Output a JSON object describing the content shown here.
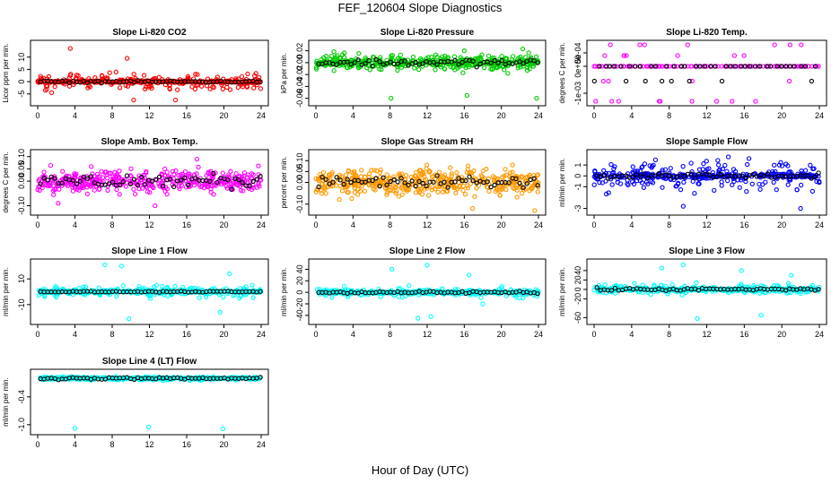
{
  "figure": {
    "title": "FEF_120604  Slope Diagnostics",
    "xlabel": "Hour of Day (UTC)"
  },
  "chart_data": [
    {
      "type": "scatter",
      "title": "Slope Li-820 CO2",
      "ylabel": "Licor ppm per min.",
      "xlim": [
        0,
        24
      ],
      "ylim": [
        -8,
        15
      ],
      "xticks": [
        0,
        4,
        8,
        12,
        16,
        20,
        24
      ],
      "yticks": [
        -5,
        0,
        5,
        10
      ],
      "yticklabels": [
        "-5",
        "0",
        "5",
        "10"
      ],
      "color": "#ff0000",
      "center": 0,
      "spread": 4.5,
      "dense_spread": 0.5,
      "black_spread": 0.5,
      "outliers": [
        [
          3.5,
          13.5
        ],
        [
          10.3,
          -7.5
        ],
        [
          14.8,
          -7.5
        ],
        [
          9.6,
          9.5
        ],
        [
          1.5,
          -4.5
        ]
      ],
      "series": [
        {
          "name": "",
          "values": []
        }
      ]
    },
    {
      "type": "scatter",
      "title": "Slope Li-820 Pressure",
      "ylabel": "kPa per min.",
      "xlim": [
        0,
        24
      ],
      "ylim": [
        -0.065,
        0.03
      ],
      "xticks": [
        0,
        4,
        8,
        12,
        16,
        20,
        24
      ],
      "yticks": [
        -0.06,
        -0.04,
        -0.02,
        0.0,
        0.02
      ],
      "yticklabels": [
        "-0.06",
        "-0.04",
        "-0.02",
        "0.00",
        "0.02"
      ],
      "color": "#00cc00",
      "center": 0.0,
      "spread": 0.02,
      "dense_spread": 0.012,
      "black_spread": 0.008,
      "outliers": [
        [
          8.1,
          -0.06
        ],
        [
          16.3,
          -0.055
        ],
        [
          23.8,
          -0.06
        ],
        [
          16.0,
          0.02
        ],
        [
          22.3,
          0.023
        ]
      ],
      "series": [
        {
          "name": "",
          "values": []
        }
      ]
    },
    {
      "type": "scatter",
      "title": "Slope Li-820 Temp.",
      "ylabel": "degrees C per min.",
      "xlim": [
        0,
        24
      ],
      "ylim": [
        -0.0013,
        0.0008
      ],
      "xticks": [
        0,
        4,
        8,
        12,
        16,
        20,
        24
      ],
      "yticks": [
        -0.001,
        0.0,
        0.0005
      ],
      "yticklabels": [
        "-1e-03",
        "0e+00",
        "5e-04"
      ],
      "color": "#ff00ff",
      "levels": [
        -0.0013,
        -0.00055,
        0.0,
        0.0004,
        0.0008
      ],
      "series": [
        {
          "name": "",
          "values": []
        }
      ]
    },
    {
      "type": "scatter",
      "title": "Slope Amb. Box Temp.",
      "ylabel": "degrees C per min.",
      "xlim": [
        0,
        24
      ],
      "ylim": [
        -0.12,
        0.11
      ],
      "xticks": [
        0,
        4,
        8,
        12,
        16,
        20,
        24
      ],
      "yticks": [
        -0.1,
        0.0,
        0.05,
        0.1
      ],
      "yticklabels": [
        "-0.10",
        "0.00",
        "0.05",
        "0.10"
      ],
      "color": "#ff00ff",
      "center": 0.0,
      "spread": 0.07,
      "dense_spread": 0.05,
      "black_spread": 0.04,
      "outliers": [
        [
          12.6,
          -0.1
        ],
        [
          17.1,
          0.09
        ],
        [
          2.2,
          -0.09
        ]
      ],
      "series": [
        {
          "name": "",
          "values": []
        }
      ]
    },
    {
      "type": "scatter",
      "title": "Slope Gas Stream RH",
      "ylabel": "percent per min.",
      "xlim": [
        0,
        24
      ],
      "ylim": [
        -0.13,
        0.13
      ],
      "xticks": [
        0,
        4,
        8,
        12,
        16,
        20,
        24
      ],
      "yticks": [
        -0.1,
        0.0,
        0.05,
        0.1
      ],
      "yticklabels": [
        "-0.10",
        "0.00",
        "0.05",
        "0.10"
      ],
      "color": "#ff9900",
      "center": 0.0,
      "spread": 0.09,
      "dense_spread": 0.07,
      "black_spread": 0.04,
      "outliers": [
        [
          16.9,
          -0.12
        ],
        [
          21.2,
          0.08
        ],
        [
          23.6,
          -0.13
        ]
      ],
      "series": [
        {
          "name": "",
          "values": []
        }
      ]
    },
    {
      "type": "scatter",
      "title": "Slope Sample Flow",
      "ylabel": "ml/min per min.",
      "xlim": [
        0,
        24
      ],
      "ylim": [
        -3.2,
        2.0
      ],
      "xticks": [
        0,
        4,
        8,
        12,
        16,
        20,
        24
      ],
      "yticks": [
        -3,
        -1,
        0,
        1
      ],
      "yticklabels": [
        "-3",
        "-1",
        "0",
        "1"
      ],
      "color": "#0000ff",
      "center": 0.0,
      "spread": 2.0,
      "dense_spread": 0.3,
      "black_spread": 0.3,
      "outliers": [
        [
          9.5,
          -2.8
        ],
        [
          16.5,
          1.6
        ],
        [
          22.0,
          -3.0
        ]
      ],
      "series": [
        {
          "name": "",
          "values": []
        }
      ]
    },
    {
      "type": "scatter",
      "title": "Slope Line 1 Flow",
      "ylabel": "ml/min per min.",
      "xlim": [
        0,
        24
      ],
      "ylim": [
        -22,
        22
      ],
      "xticks": [
        0,
        4,
        8,
        12,
        16,
        20,
        24
      ],
      "yticks": [
        -10,
        10
      ],
      "yticklabels": [
        "-10",
        "10"
      ],
      "color": "#00ffff",
      "center": 0,
      "spread": 6,
      "dense_spread": 1.5,
      "black_spread": 0.5,
      "outliers": [
        [
          7.2,
          21
        ],
        [
          9.0,
          20
        ],
        [
          9.8,
          -21
        ],
        [
          19.6,
          -16
        ],
        [
          20.6,
          14
        ]
      ],
      "series": [
        {
          "name": "",
          "values": []
        }
      ]
    },
    {
      "type": "scatter",
      "title": "Slope Line 2 Flow",
      "ylabel": "ml/min per min.",
      "xlim": [
        0,
        24
      ],
      "ylim": [
        -48,
        50
      ],
      "xticks": [
        0,
        4,
        8,
        12,
        16,
        20,
        24
      ],
      "yticks": [
        -40,
        -20,
        0,
        20,
        40
      ],
      "yticklabels": [
        "-40",
        "-20",
        "0",
        "20",
        "40"
      ],
      "color": "#00ffff",
      "center": 0,
      "spread": 12,
      "dense_spread": 3,
      "black_spread": 3,
      "outliers": [
        [
          8.2,
          40
        ],
        [
          11.0,
          -45
        ],
        [
          12.4,
          -42
        ],
        [
          12.0,
          47
        ],
        [
          16.5,
          30
        ],
        [
          18.0,
          -20
        ]
      ],
      "series": [
        {
          "name": "",
          "values": []
        }
      ]
    },
    {
      "type": "scatter",
      "title": "Slope Line 3 Flow",
      "ylabel": "ml/min per min.",
      "xlim": [
        0,
        24
      ],
      "ylim": [
        -65,
        55
      ],
      "xticks": [
        0,
        4,
        8,
        12,
        16,
        20,
        24
      ],
      "yticks": [
        -60,
        -20,
        0,
        20,
        40
      ],
      "yticklabels": [
        "-60",
        "-20",
        "0",
        "20",
        "40"
      ],
      "color": "#00ffff",
      "center": 0,
      "spread": 15,
      "dense_spread": 4,
      "black_spread": 4,
      "outliers": [
        [
          7.2,
          45
        ],
        [
          11.0,
          -62
        ],
        [
          9.5,
          52
        ],
        [
          15.7,
          40
        ],
        [
          17.8,
          -55
        ],
        [
          21.0,
          30
        ]
      ],
      "series": [
        {
          "name": "",
          "values": []
        }
      ]
    },
    {
      "type": "scatter",
      "title": "Slope Line 4 (LT) Flow",
      "ylabel": "ml/min per min.",
      "xlim": [
        0,
        24
      ],
      "ylim": [
        -1.12,
        0.1
      ],
      "xticks": [
        0,
        4,
        8,
        12,
        16,
        20,
        24
      ],
      "yticks": [
        -1.0,
        -0.4
      ],
      "yticklabels": [
        "-1.0",
        "-0.4"
      ],
      "color": "#00ffff",
      "center": 0.0,
      "spread": 0.05,
      "dense_spread": 0.04,
      "black_spread": 0.03,
      "outliers": [
        [
          4.0,
          -1.08
        ],
        [
          11.9,
          -1.05
        ],
        [
          19.9,
          -1.09
        ]
      ],
      "series": [
        {
          "name": "",
          "values": []
        }
      ]
    }
  ]
}
